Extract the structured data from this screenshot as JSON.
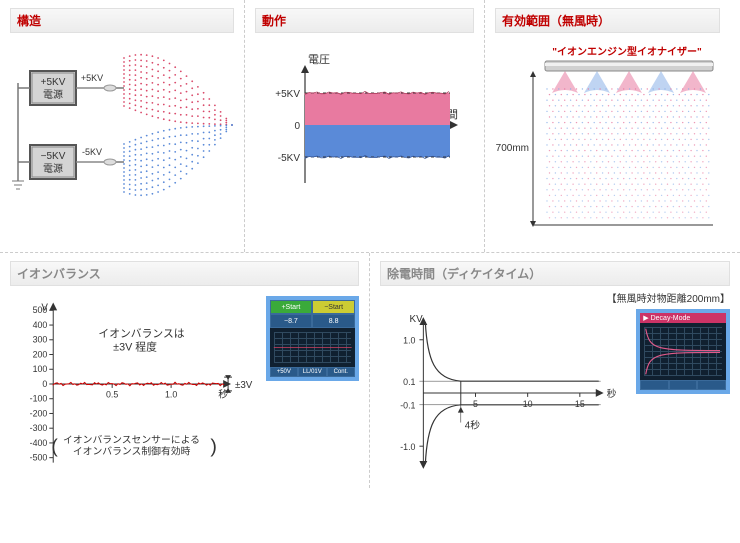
{
  "panel1": {
    "title": "構造",
    "psu_pos": {
      "line1": "+5KV",
      "line2": "電源"
    },
    "psu_neg": {
      "line1": "−5KV",
      "line2": "電源"
    },
    "wire_pos": "+5KV",
    "wire_neg": "-5KV",
    "colors": {
      "box_fill": "#d4d4d4",
      "box_stroke": "#555",
      "pos_dots": "#d94a6a",
      "neg_dots": "#5a8ad8",
      "wire": "#888"
    }
  },
  "panel2": {
    "title": "動作",
    "y_label": "電圧",
    "x_label": "時間",
    "y_ticks": [
      "+5KV",
      "0",
      "-5KV"
    ],
    "band_top_color": "#e87aa0",
    "band_bot_color": "#5a8ad8",
    "axis_color": "#333"
  },
  "panel3": {
    "title": "有効範囲（無風時）",
    "subtitle": "\"イオンエンジン型イオナイザー\"",
    "height_label": "700mm",
    "bar_color": "#c8c8c8",
    "cone_pos": "#e87aa0",
    "cone_neg": "#8ab0e8",
    "dot1": "#e87aa0",
    "dot2": "#8ab0e8"
  },
  "panel4": {
    "title": "イオンバランス",
    "annotation_main": "イオンバランスは\n±3V 程度",
    "annotation_3v": "±3V",
    "annotation_note": "イオンバランスセンサーによる\nイオンバランス制御有効時",
    "y_unit": "V",
    "x_unit": "秒",
    "y_ticks": [
      500,
      400,
      300,
      200,
      100,
      0,
      -100,
      -200,
      -300,
      -400,
      -500
    ],
    "x_ticks": [
      "0.5",
      "1.0"
    ],
    "trace_color": "#d00000",
    "ylim": [
      -500,
      500
    ],
    "xlim": [
      0,
      1.6
    ],
    "measure": {
      "tl": "+Start",
      "tr": "−Start",
      "vl": "−8.7",
      "vr": "8.8",
      "b1": "+50V",
      "b2": "LL/01V",
      "b3": "Cont."
    }
  },
  "panel5": {
    "title": "除電時間（ディケイタイム）",
    "subtitle_right": "【無風時対物距離200mm】",
    "y_unit": "KV",
    "x_unit": "秒",
    "y_ticks": [
      "1.0",
      "0.1",
      "-0.1",
      "-1.0"
    ],
    "x_ticks": [
      "5",
      "10",
      "15"
    ],
    "marker_label": "4秒",
    "axis_color": "#333",
    "ylim": [
      -1.5,
      1.5
    ],
    "xlim": [
      0,
      17
    ],
    "measure_head": "▶ Decay-Mode"
  }
}
